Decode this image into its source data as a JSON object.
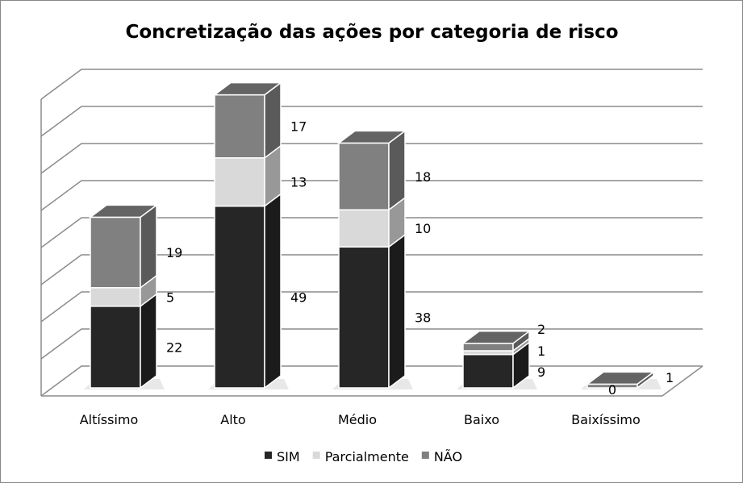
{
  "chart_data": {
    "type": "bar",
    "stacked": true,
    "three_d": true,
    "title": "Concretização das ações por categoria de risco",
    "categories": [
      "Altíssimo",
      "Alto",
      "Médio",
      "Baixo",
      "Baixíssimo"
    ],
    "series": [
      {
        "name": "SIM",
        "values": [
          22,
          49,
          38,
          9,
          0
        ],
        "color": "#262626"
      },
      {
        "name": "Parcialmente",
        "values": [
          5,
          13,
          10,
          1,
          null
        ],
        "color": "#d9d9d9"
      },
      {
        "name": "NÃO",
        "values": [
          19,
          17,
          18,
          2,
          1
        ],
        "color": "#808080"
      }
    ],
    "ylim": [
      0,
      80
    ],
    "ytick_step": 10,
    "y_tick_labels_shown": false,
    "grid": true,
    "legend_position": "bottom"
  }
}
